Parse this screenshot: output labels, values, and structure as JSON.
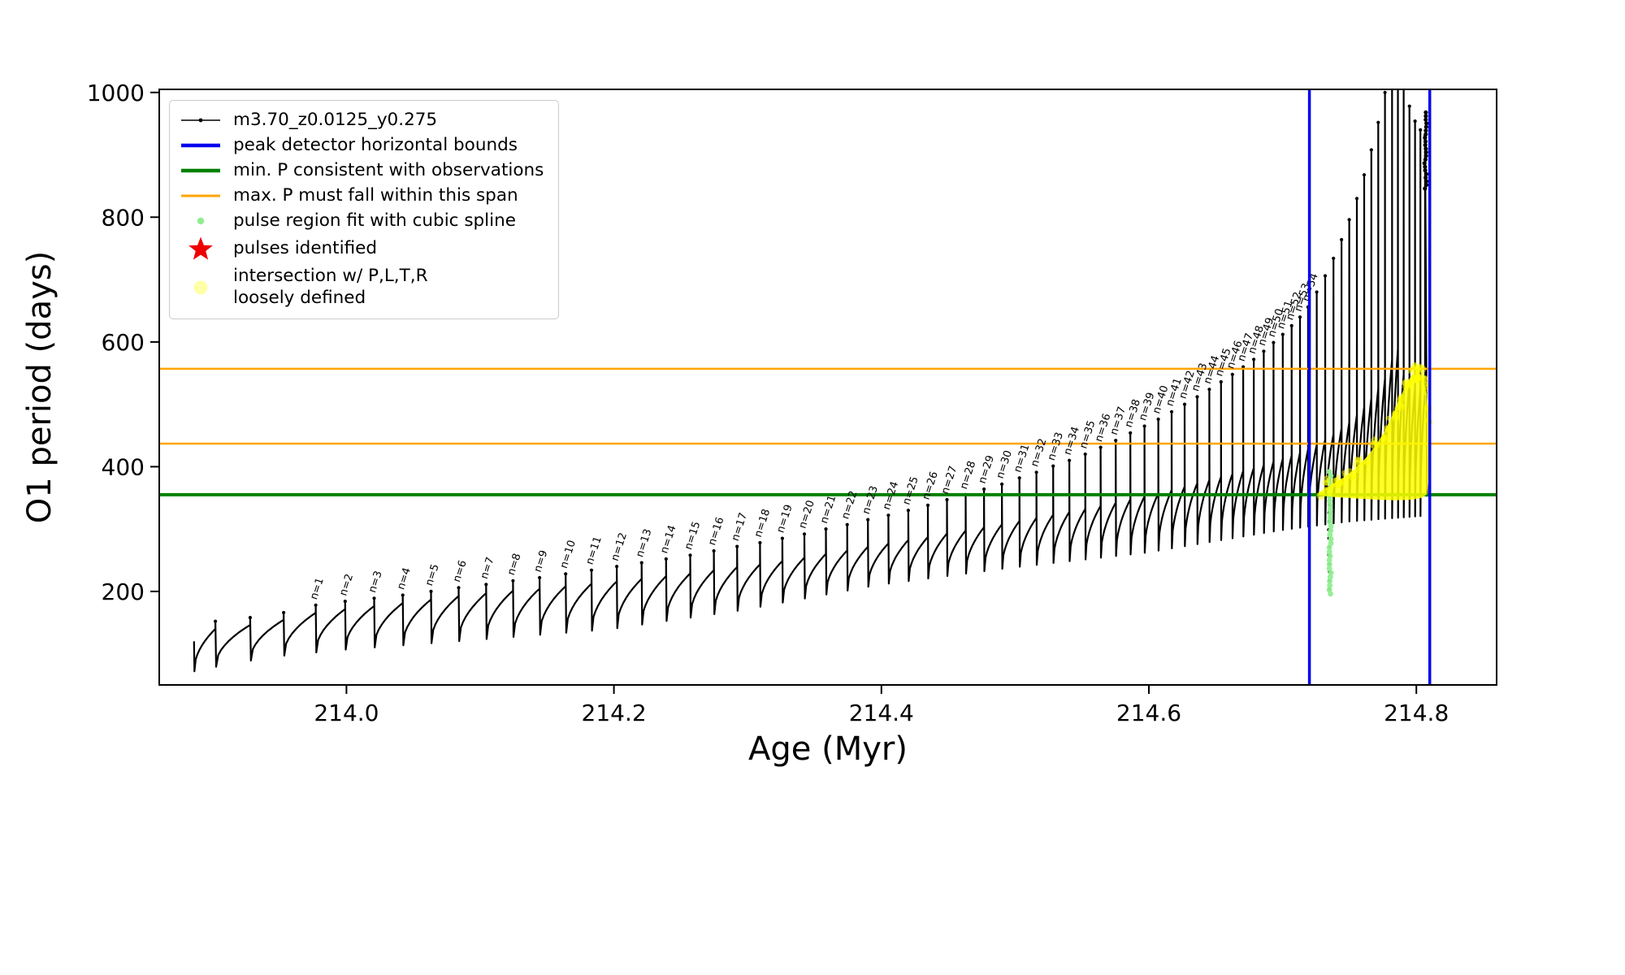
{
  "figure": {
    "background": "#ffffff"
  },
  "chart_data": {
    "type": "line",
    "title": "",
    "xlabel": "Age (Myr)",
    "ylabel": "O1 period (days)",
    "xlim": [
      213.86,
      214.86
    ],
    "ylim": [
      50,
      1005
    ],
    "grid": false,
    "xticks": [
      214.0,
      214.2,
      214.4,
      214.6,
      214.8
    ],
    "xtick_labels": [
      "214.0",
      "214.2",
      "214.4",
      "214.6",
      "214.8"
    ],
    "yticks": [
      200,
      400,
      600,
      800,
      1000
    ],
    "ytick_labels": [
      "200",
      "400",
      "600",
      "800",
      "1000"
    ],
    "legend": {
      "position": "upper left",
      "entries": [
        {
          "label": "m3.70_z0.0125_y0.275",
          "marker": "line-with-dots",
          "color": "#000000"
        },
        {
          "label": "peak detector horizontal bounds",
          "marker": "thick-line",
          "color": "#0000ee"
        },
        {
          "label": "min. P consistent with observations",
          "marker": "thick-line",
          "color": "#008000"
        },
        {
          "label": "max. P must fall within this span",
          "marker": "line",
          "color": "#ffa500"
        },
        {
          "label": "pulse region fit with cubic spline",
          "marker": "small-dot",
          "color": "#90ee90"
        },
        {
          "label": "pulses identified",
          "marker": "star",
          "color": "#ee0000"
        },
        {
          "label": "intersection w/ P,L,T,R\nloosely defined",
          "marker": "big-faded-dot",
          "color": "#ffff99"
        }
      ]
    },
    "series_label": "m3.70_z0.0125_y0.275",
    "horizontal_lines": [
      {
        "name": "min-p-observed",
        "y": 355,
        "color": "#008000",
        "width": 4
      },
      {
        "name": "max-p-span-lower",
        "y": 437,
        "color": "#ffa500",
        "width": 2.5
      },
      {
        "name": "max-p-span-upper",
        "y": 557,
        "color": "#ffa500",
        "width": 2.5
      }
    ],
    "vertical_lines": [
      {
        "name": "peak-bound-left",
        "x": 214.72,
        "color": "#0000ee",
        "width": 3.5
      },
      {
        "name": "peak-bound-right",
        "x": 214.81,
        "color": "#0000ee",
        "width": 3.5
      }
    ],
    "start": [
      213.886,
      120
    ],
    "lower_envelope": [
      [
        213.88,
        68
      ],
      [
        213.95,
        95
      ],
      [
        214.0,
        106
      ],
      [
        214.1,
        122
      ],
      [
        214.2,
        139
      ],
      [
        214.3,
        170
      ],
      [
        214.4,
        210
      ],
      [
        214.5,
        238
      ],
      [
        214.6,
        262
      ],
      [
        214.7,
        298
      ],
      [
        214.75,
        312
      ],
      [
        214.86,
        330
      ]
    ],
    "shape": {
      "recover_hi": 0.85,
      "recover_lo": 0.33,
      "ramp_start": 214.1,
      "ramp_span": 0.65,
      "scoop_exp": 0.5
    },
    "pre_pulses": [
      [
        213.902,
        152
      ],
      [
        213.928,
        158
      ],
      [
        213.953,
        166
      ]
    ],
    "pulses": [
      [
        213.977,
        178,
        "n=1"
      ],
      [
        213.999,
        184,
        "n=2"
      ],
      [
        214.0207,
        189,
        "n=3"
      ],
      [
        214.0421,
        194,
        "n=4"
      ],
      [
        214.0632,
        200,
        "n=5"
      ],
      [
        214.0839,
        206,
        "n=6"
      ],
      [
        214.1044,
        211,
        "n=7"
      ],
      [
        214.1245,
        217,
        "n=8"
      ],
      [
        214.1444,
        222,
        "n=9"
      ],
      [
        214.1639,
        228,
        "n=10"
      ],
      [
        214.1832,
        234,
        "n=11"
      ],
      [
        214.2021,
        240,
        "n=12"
      ],
      [
        214.2207,
        246,
        "n=13"
      ],
      [
        214.239,
        252,
        "n=14"
      ],
      [
        214.257,
        258,
        "n=15"
      ],
      [
        214.2747,
        265,
        "n=16"
      ],
      [
        214.2921,
        272,
        "n=17"
      ],
      [
        214.3092,
        278,
        "n=18"
      ],
      [
        214.3259,
        285,
        "n=19"
      ],
      [
        214.3424,
        292,
        "n=20"
      ],
      [
        214.3585,
        300,
        "n=21"
      ],
      [
        214.3744,
        307,
        "n=22"
      ],
      [
        214.3899,
        315,
        "n=23"
      ],
      [
        214.4052,
        322,
        "n=24"
      ],
      [
        214.4201,
        330,
        "n=25"
      ],
      [
        214.4347,
        338,
        "n=26"
      ],
      [
        214.449,
        347,
        "n=27"
      ],
      [
        214.463,
        355,
        "n=28"
      ],
      [
        214.4767,
        364,
        "n=29"
      ],
      [
        214.4901,
        372,
        "n=30"
      ],
      [
        214.5032,
        382,
        "n=31"
      ],
      [
        214.5159,
        391,
        "n=32"
      ],
      [
        214.5284,
        401,
        "n=33"
      ],
      [
        214.5405,
        410,
        "n=34"
      ],
      [
        214.5524,
        420,
        "n=35"
      ],
      [
        214.5639,
        431,
        "n=36"
      ],
      [
        214.5752,
        442,
        "n=37"
      ],
      [
        214.5861,
        454,
        "n=38"
      ],
      [
        214.5967,
        465,
        "n=39"
      ],
      [
        214.607,
        476,
        "n=40"
      ],
      [
        214.617,
        488,
        "n=41"
      ],
      [
        214.6267,
        500,
        "n=42"
      ],
      [
        214.6361,
        512,
        "n=43"
      ],
      [
        214.6452,
        524,
        "n=44"
      ],
      [
        214.6539,
        536,
        "n=45"
      ],
      [
        214.6624,
        548,
        "n=46"
      ],
      [
        214.6705,
        560,
        "n=47"
      ],
      [
        214.6784,
        572,
        "n=48"
      ],
      [
        214.6859,
        585,
        "n=49"
      ],
      [
        214.6932,
        599,
        "n=50"
      ],
      [
        214.7001,
        612,
        "n=51"
      ],
      [
        214.7067,
        626,
        "n=52"
      ],
      [
        214.713,
        640,
        "n=53"
      ],
      [
        214.719,
        656,
        "n=54"
      ]
    ],
    "extra_pulses": [
      [
        214.7255,
        680
      ],
      [
        214.7318,
        706
      ],
      [
        214.738,
        734
      ],
      [
        214.744,
        764
      ],
      [
        214.7498,
        796
      ],
      [
        214.7555,
        830
      ],
      [
        214.761,
        868
      ],
      [
        214.7663,
        908
      ],
      [
        214.7715,
        952
      ],
      [
        214.7765,
        1000
      ],
      [
        214.7818,
        1090
      ],
      [
        214.7862,
        1140
      ],
      [
        214.7905,
        1015
      ],
      [
        214.7948,
        978
      ],
      [
        214.799,
        954
      ],
      [
        214.803,
        940
      ],
      [
        214.8065,
        930
      ]
    ],
    "spline_dots": {
      "name": "spline-fit-dots",
      "age": 214.7355,
      "jitter": 0.0007,
      "pmin": 196,
      "pmax": 392,
      "count": 30,
      "radius": 3.4,
      "color": "#90ee90"
    },
    "spline_black_dots": {
      "name": "spline-region-data-dots",
      "age": 214.7348,
      "jitter": 0.0004,
      "pmin": 204,
      "pmax": 380,
      "count": 14,
      "radius": 2
    },
    "terminal_dots": {
      "name": "terminal-peak-dots",
      "age": 214.8068,
      "jitter": 0.0008,
      "pmin": 846,
      "pmax": 968,
      "count": 22,
      "radius": 2.6
    },
    "yellow_region": {
      "color": "#ffff00",
      "fuzz_count": 90,
      "polygon": [
        [
          214.726,
          354
        ],
        [
          214.74,
          351
        ],
        [
          214.755,
          349
        ],
        [
          214.77,
          347
        ],
        [
          214.785,
          346
        ],
        [
          214.797,
          347
        ],
        [
          214.804,
          350
        ],
        [
          214.808,
          356
        ],
        [
          214.8095,
          400
        ],
        [
          214.8095,
          470
        ],
        [
          214.808,
          515
        ],
        [
          214.805,
          542
        ],
        [
          214.801,
          554
        ],
        [
          214.797,
          549
        ],
        [
          214.792,
          531
        ],
        [
          214.787,
          507
        ],
        [
          214.782,
          482
        ],
        [
          214.776,
          456
        ],
        [
          214.769,
          432
        ],
        [
          214.761,
          411
        ],
        [
          214.752,
          393
        ],
        [
          214.743,
          379
        ],
        [
          214.734,
          368
        ],
        [
          214.728,
          360
        ]
      ],
      "top_edge": [
        [
          214.728,
          362
        ],
        [
          214.737,
          372
        ],
        [
          214.747,
          385
        ],
        [
          214.757,
          402
        ],
        [
          214.766,
          424
        ],
        [
          214.774,
          448
        ],
        [
          214.781,
          475
        ],
        [
          214.787,
          503
        ],
        [
          214.792,
          528
        ],
        [
          214.797,
          547
        ],
        [
          214.801,
          553
        ],
        [
          214.805,
          545
        ],
        [
          214.808,
          515
        ],
        [
          214.8093,
          470
        ]
      ]
    }
  }
}
